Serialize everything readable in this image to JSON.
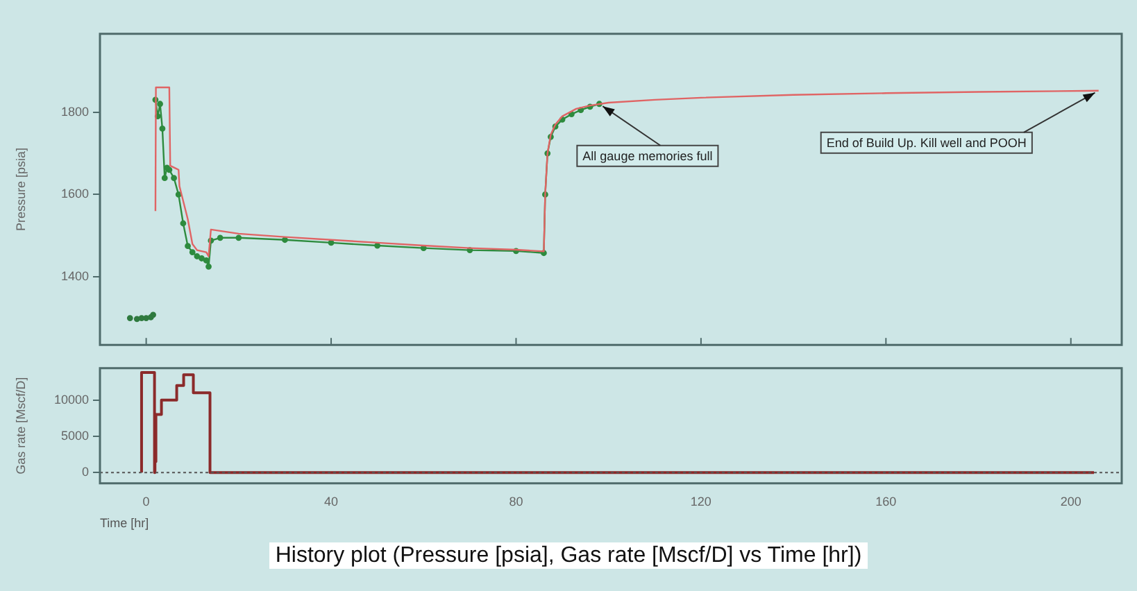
{
  "chart_data": [
    {
      "type": "line",
      "ylabel": "Pressure [psia]",
      "xlim": [
        -10,
        211
      ],
      "xticks": [
        0,
        40,
        80,
        120,
        160,
        200
      ],
      "ylim": [
        1235,
        1990
      ],
      "yticks": [
        1400,
        1600,
        1800
      ],
      "tick_labels": "y",
      "grid": false,
      "legend": false,
      "series": [
        {
          "color": "#e06464",
          "marker": "none",
          "x": [
            2,
            2.1,
            5,
            5.2,
            7,
            7.2,
            9,
            10,
            11,
            13,
            13.5,
            14,
            20,
            30,
            40,
            50,
            60,
            70,
            80,
            86,
            86.3,
            86.8,
            87.5,
            88.5,
            90,
            93,
            96,
            100,
            110,
            120,
            140,
            160,
            180,
            206
          ],
          "values": [
            1560,
            1860,
            1860,
            1670,
            1660,
            1620,
            1540,
            1480,
            1465,
            1460,
            1450,
            1515,
            1505,
            1497,
            1490,
            1483,
            1476,
            1470,
            1466,
            1462,
            1600,
            1700,
            1745,
            1770,
            1790,
            1808,
            1816,
            1823,
            1830,
            1835,
            1842,
            1846,
            1849,
            1852
          ]
        },
        {
          "type": "scatter",
          "color": "#2f7a3f",
          "marker": "circle",
          "x": [
            -3.5,
            -2,
            -1,
            0,
            1,
            1.5
          ],
          "values": [
            1300,
            1298,
            1300,
            1300,
            1302,
            1308
          ]
        },
        {
          "color": "#2e8b3e",
          "marker": "circle",
          "x": [
            2,
            2.5,
            3,
            3.5,
            4,
            4.5,
            5,
            6,
            7,
            8,
            9,
            10,
            11,
            12,
            13,
            13.5,
            14,
            16,
            20,
            30,
            40,
            50,
            60,
            70,
            80,
            86,
            86.3,
            86.8,
            87.5,
            88.5,
            90,
            92,
            94,
            96,
            98
          ],
          "values": [
            1830,
            1790,
            1820,
            1760,
            1640,
            1665,
            1660,
            1640,
            1600,
            1530,
            1475,
            1460,
            1450,
            1445,
            1440,
            1425,
            1488,
            1495,
            1495,
            1490,
            1483,
            1476,
            1470,
            1465,
            1463,
            1458,
            1600,
            1700,
            1740,
            1765,
            1782,
            1795,
            1805,
            1813,
            1820
          ]
        }
      ],
      "annotations": [
        {
          "text": "All gauge memories full",
          "x": 98,
          "y": 1820
        },
        {
          "text": "End of Build Up. Kill well and POOH",
          "x": 206,
          "y": 1852
        }
      ]
    },
    {
      "type": "step",
      "xlabel": "Time [hr]",
      "ylabel": "Gas rate [Mscf/D]",
      "xlim": [
        -10,
        211
      ],
      "xticks": [
        0,
        40,
        80,
        120,
        160,
        200
      ],
      "ylim": [
        -1500,
        14400
      ],
      "yticks": [
        0,
        5000,
        10000
      ],
      "grid": false,
      "legend": false,
      "series": [
        {
          "color": "#8b2a2a",
          "x": [
            -1,
            1.8,
            1.9,
            2.1,
            3.3,
            6.6,
            8.1,
            10.2,
            13.8,
            85.8,
            205
          ],
          "values": [
            0,
            13800,
            0,
            1500,
            8000,
            10000,
            12000,
            13500,
            11000,
            0,
            0
          ]
        }
      ],
      "ref_lines": [
        {
          "axis": "y",
          "value": 0,
          "line_style": "dotted",
          "color": "#555555"
        }
      ],
      "annotations": [
        "History plot (Pressure [psia], Gas rate [Mscf/D] vs Time [hr])"
      ]
    }
  ]
}
